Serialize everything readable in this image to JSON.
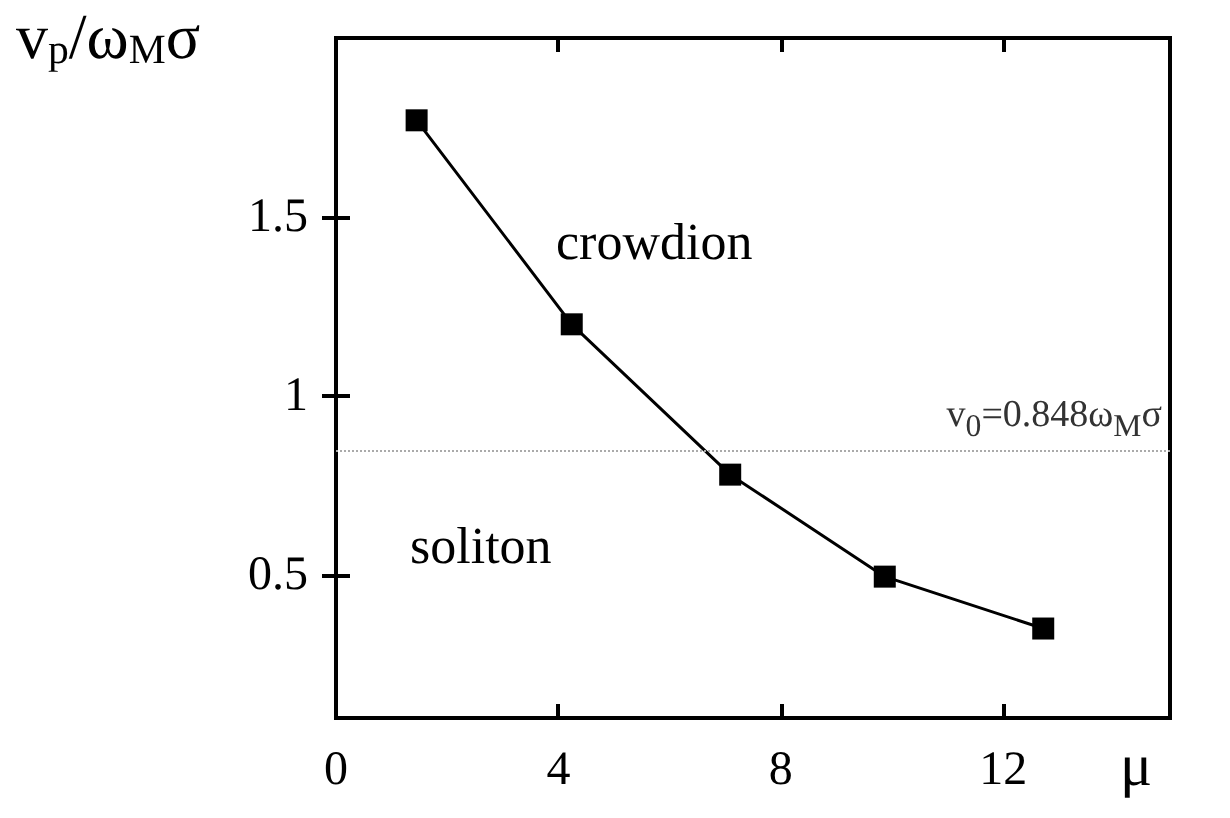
{
  "chart_data": {
    "type": "line",
    "xlabel": "μ",
    "ylabel": "v$_{p}$/ω$_{M}$σ",
    "x": [
      1.45,
      4.24,
      7.09,
      9.87,
      12.72
    ],
    "series": [
      {
        "color": "#000000",
        "values": [
          1.77,
          1.2,
          0.78,
          0.495,
          0.35
        ]
      }
    ],
    "xlim": [
      0,
      15
    ],
    "xticks": [
      0,
      4,
      8,
      12
    ],
    "ylim": [
      0.1,
      2
    ],
    "yticks": [
      0.5,
      1,
      1.5
    ],
    "ref_lines": [
      {
        "axis": "y",
        "value": 0.848,
        "label": "v$_{0}$=0.848ω$_{M}$σ",
        "color": "#aaaaaa",
        "line_style": "dotted"
      }
    ],
    "annotations": [
      "crowdion",
      "soliton"
    ],
    "marker": "square",
    "line_style": "solid",
    "grid": false
  }
}
